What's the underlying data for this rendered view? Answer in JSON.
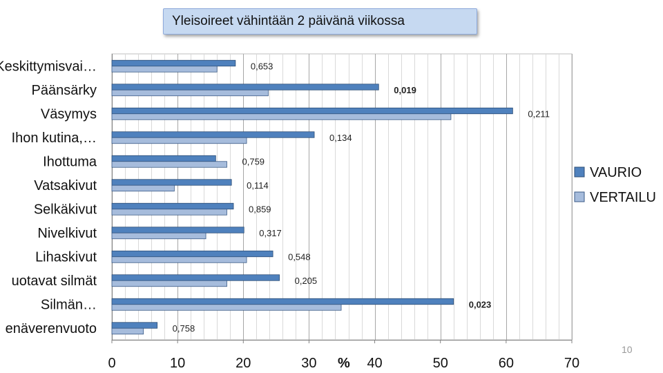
{
  "page_number": "10",
  "chart_data": {
    "type": "bar",
    "orientation": "horizontal",
    "title": "Yleisoireet vähintään 2 päivänä viikossa",
    "xlabel": "%",
    "xlim": [
      0,
      70
    ],
    "xticks": [
      "0",
      "10",
      "20",
      "30",
      "40",
      "50",
      "60",
      "70"
    ],
    "grid": true,
    "legend_position": "right",
    "categories": [
      "Keskittymisvai…",
      "Päänsärky",
      "Väsymys",
      "Ihon kutina,…",
      "Ihottuma",
      "Vatsakivut",
      "Selkäkivut",
      "Nivelkivut",
      "Lihaskivut",
      "uotavat silmät",
      "Silmän…",
      "enäverenvuoto"
    ],
    "series": [
      {
        "name": "VAURIO",
        "color": "#4f81bd",
        "values": [
          18.8,
          40.6,
          61,
          30.8,
          15.8,
          18.2,
          18.5,
          20.1,
          24.5,
          25.5,
          52,
          6.9
        ]
      },
      {
        "name": "VERTAILU",
        "color": "#a6bcdc",
        "values": [
          16,
          23.8,
          51.6,
          20.5,
          17.5,
          9.5,
          17.5,
          14.3,
          20.5,
          17.5,
          34.9,
          4.8
        ]
      }
    ],
    "annotations": [
      {
        "text": "0,653",
        "bold": false
      },
      {
        "text": "0,019",
        "bold": true
      },
      {
        "text": "0,211",
        "bold": false
      },
      {
        "text": "0,134",
        "bold": false
      },
      {
        "text": "0,759",
        "bold": false
      },
      {
        "text": "0,114",
        "bold": false
      },
      {
        "text": "0,859",
        "bold": false
      },
      {
        "text": "0,317",
        "bold": false
      },
      {
        "text": "0,548",
        "bold": false
      },
      {
        "text": "0,205",
        "bold": false
      },
      {
        "text": "0,023",
        "bold": true
      },
      {
        "text": "0,758",
        "bold": false
      }
    ]
  }
}
